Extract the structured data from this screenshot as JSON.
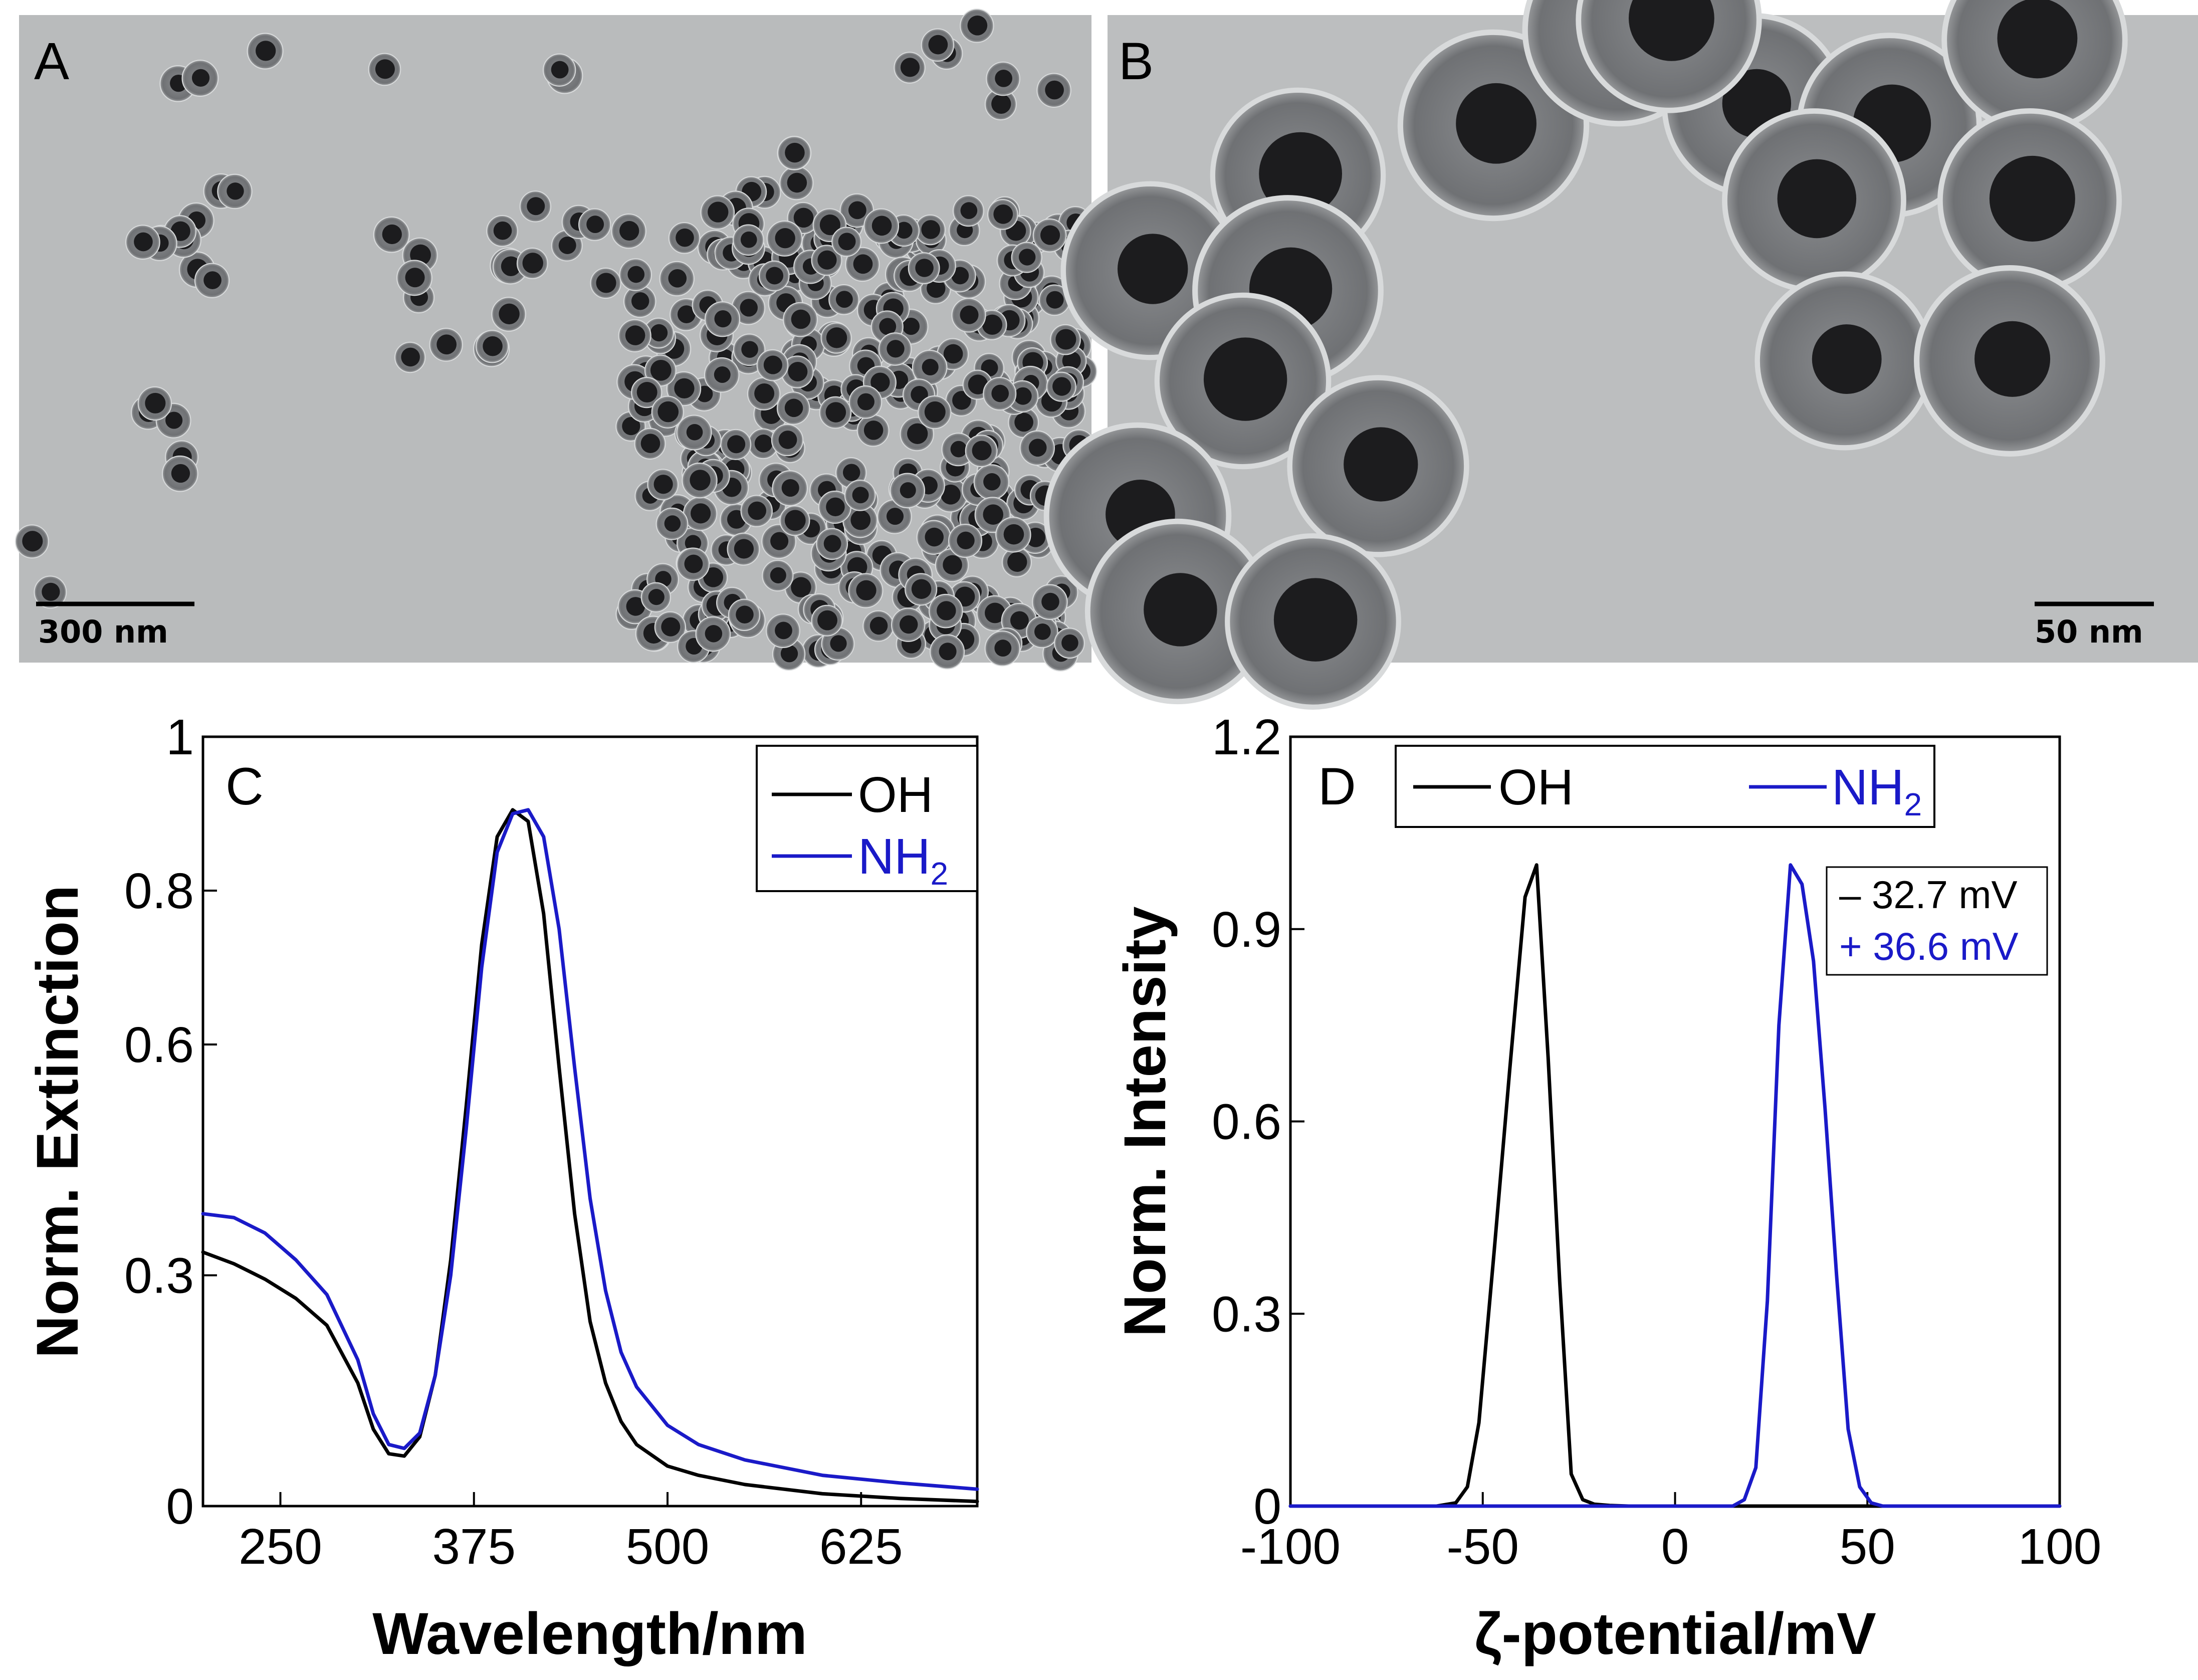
{
  "colors": {
    "oh": "#000000",
    "nh2": "#1a1ac8",
    "tem_background": "#b9bbbc",
    "particle_core": "#1c1c1e",
    "particle_shell": "#75777a"
  },
  "panels": {
    "A": {
      "letter": "A",
      "scale_bar": "300 nm"
    },
    "B": {
      "letter": "B",
      "scale_bar": "50 nm"
    },
    "C": {
      "letter": "C"
    },
    "D": {
      "letter": "D"
    }
  },
  "chart_data": [
    {
      "panel": "C",
      "type": "line",
      "xlabel": "Wavelength/nm",
      "ylabel": "Norm. Extinction",
      "xlim": [
        200,
        700
      ],
      "ylim": [
        0,
        1
      ],
      "xticks": [
        250,
        375,
        500,
        625
      ],
      "yticks": [
        0,
        0.3,
        0.6,
        0.8,
        1
      ],
      "ytick_labels": [
        "0",
        "0.3",
        "0.6",
        "0.8",
        "1"
      ],
      "legend": {
        "position": "top-right",
        "entries": [
          "OH",
          "NH"
        ],
        "subscript": [
          "",
          "2"
        ]
      },
      "series": [
        {
          "name": "OH",
          "x": [
            200,
            220,
            240,
            260,
            280,
            300,
            310,
            320,
            330,
            340,
            350,
            360,
            370,
            380,
            390,
            400,
            410,
            420,
            430,
            440,
            450,
            460,
            470,
            480,
            500,
            520,
            550,
            600,
            650,
            700
          ],
          "y": [
            0.33,
            0.315,
            0.295,
            0.27,
            0.235,
            0.16,
            0.1,
            0.068,
            0.065,
            0.09,
            0.17,
            0.32,
            0.52,
            0.73,
            0.87,
            0.905,
            0.89,
            0.77,
            0.57,
            0.38,
            0.24,
            0.16,
            0.11,
            0.08,
            0.052,
            0.04,
            0.028,
            0.016,
            0.01,
            0.006
          ]
        },
        {
          "name": "NH2",
          "x": [
            200,
            220,
            240,
            260,
            280,
            300,
            310,
            320,
            330,
            340,
            350,
            360,
            370,
            380,
            390,
            400,
            410,
            420,
            430,
            440,
            450,
            460,
            470,
            480,
            500,
            520,
            550,
            600,
            650,
            700
          ],
          "y": [
            0.38,
            0.375,
            0.355,
            0.32,
            0.275,
            0.19,
            0.12,
            0.08,
            0.075,
            0.095,
            0.17,
            0.3,
            0.49,
            0.7,
            0.85,
            0.9,
            0.905,
            0.87,
            0.75,
            0.57,
            0.4,
            0.28,
            0.2,
            0.155,
            0.105,
            0.08,
            0.06,
            0.04,
            0.03,
            0.022
          ]
        }
      ]
    },
    {
      "panel": "D",
      "type": "line",
      "xlabel": "ζ-potential/mV",
      "ylabel": "Norm. Intensity",
      "xlim": [
        -100,
        100
      ],
      "ylim": [
        0,
        1.2
      ],
      "xticks": [
        -100,
        -50,
        0,
        50,
        100
      ],
      "yticks": [
        0,
        0.3,
        0.6,
        0.9,
        1.2
      ],
      "ytick_labels": [
        "0",
        "0.3",
        "0.6",
        "0.9",
        "1.2"
      ],
      "legend": {
        "position": "top",
        "entries": [
          "OH",
          "NH"
        ],
        "subscript": [
          "",
          "2"
        ]
      },
      "annotations": [
        "– 32.7 mV",
        "+ 36.6 mV"
      ],
      "series": [
        {
          "name": "OH",
          "x": [
            -100,
            -62,
            -57,
            -54,
            -51,
            -47,
            -43,
            -39,
            -36,
            -33,
            -30,
            -27,
            -24,
            -21,
            -17,
            -12,
            100
          ],
          "y": [
            0,
            0,
            0.005,
            0.03,
            0.13,
            0.4,
            0.68,
            0.95,
            1.0,
            0.7,
            0.35,
            0.05,
            0.01,
            0.003,
            0.001,
            0,
            0
          ]
        },
        {
          "name": "NH2",
          "x": [
            -100,
            15,
            18,
            21,
            24,
            27,
            30,
            33,
            36,
            39,
            42,
            45,
            48,
            51,
            54,
            100
          ],
          "y": [
            0,
            0,
            0.01,
            0.06,
            0.32,
            0.75,
            1.0,
            0.97,
            0.85,
            0.62,
            0.36,
            0.12,
            0.03,
            0.005,
            0,
            0
          ]
        }
      ]
    }
  ]
}
